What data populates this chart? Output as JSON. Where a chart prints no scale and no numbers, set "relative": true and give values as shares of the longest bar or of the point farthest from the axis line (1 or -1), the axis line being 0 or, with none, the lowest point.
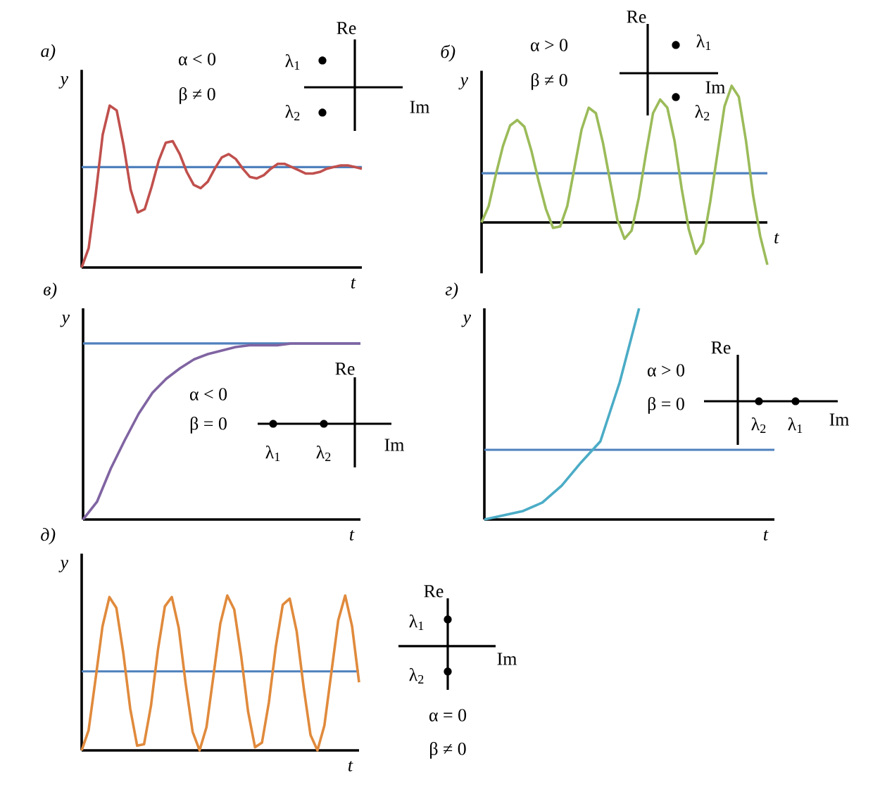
{
  "chart_data": [
    {
      "type": "line",
      "title": "а)",
      "xlabel": "t",
      "ylabel": "y",
      "relative": true,
      "categories": [
        null,
        null,
        null,
        null,
        null,
        null,
        null,
        null,
        null,
        null,
        null,
        null,
        null,
        null,
        null,
        null,
        null,
        null,
        null,
        null,
        null,
        null,
        null,
        null,
        null,
        null,
        null,
        null,
        null,
        null,
        null,
        null,
        null,
        null,
        null,
        null,
        null,
        null,
        null,
        null,
        null
      ],
      "series": [
        {
          "color": "#c0504d",
          "values": [
            0,
            0.12,
            0.45,
            0.82,
            1.0,
            0.97,
            0.75,
            0.48,
            0.34,
            0.36,
            0.5,
            0.66,
            0.77,
            0.78,
            0.7,
            0.59,
            0.51,
            0.49,
            0.53,
            0.61,
            0.68,
            0.7,
            0.67,
            0.61,
            0.56,
            0.55,
            0.57,
            0.61,
            0.64,
            0.64,
            0.62,
            0.6,
            0.58,
            0.58,
            0.59,
            0.61,
            0.62,
            0.63,
            0.63,
            0.62,
            0.61
          ]
        }
      ],
      "ref_lines": [
        {
          "axis": "y",
          "value": 0.62,
          "color": "#4f81bd"
        }
      ],
      "annotations": [
        "α < 0",
        "β ≠ 0",
        "Re",
        "Im",
        "λ$_{1}$",
        "λ$_{2}$"
      ]
    },
    {
      "type": "line",
      "title": "б)",
      "xlabel": "t",
      "ylabel": "y",
      "relative": true,
      "categories": [
        null,
        null,
        null,
        null,
        null,
        null,
        null,
        null,
        null,
        null,
        null,
        null,
        null,
        null,
        null,
        null,
        null,
        null,
        null,
        null,
        null,
        null,
        null,
        null,
        null,
        null,
        null,
        null,
        null,
        null,
        null,
        null,
        null,
        null,
        null,
        null,
        null,
        null,
        null,
        null,
        null
      ],
      "series": [
        {
          "color": "#9bbb59",
          "values": [
            0,
            0.12,
            0.35,
            0.56,
            0.71,
            0.75,
            0.7,
            0.52,
            0.3,
            0.1,
            -0.04,
            -0.03,
            0.12,
            0.4,
            0.68,
            0.84,
            0.8,
            0.58,
            0.3,
            0.02,
            -0.12,
            -0.06,
            0.18,
            0.5,
            0.8,
            0.9,
            0.84,
            0.6,
            0.25,
            -0.05,
            -0.23,
            -0.15,
            0.15,
            0.5,
            0.85,
            1.0,
            0.92,
            0.6,
            0.2,
            -0.1,
            -0.31
          ]
        }
      ],
      "ref_lines": [
        {
          "axis": "y",
          "value": 0.36,
          "color": "#4f81bd"
        }
      ],
      "annotations": [
        "α > 0",
        "β ≠ 0",
        "Re",
        "Im",
        "λ$_{1}$",
        "λ$_{2}$"
      ]
    },
    {
      "type": "line",
      "title": "в)",
      "xlabel": "t",
      "ylabel": "y",
      "relative": true,
      "categories": [
        null,
        null,
        null,
        null,
        null,
        null,
        null,
        null,
        null,
        null,
        null,
        null,
        null,
        null,
        null,
        null,
        null,
        null,
        null,
        null,
        null
      ],
      "series": [
        {
          "color": "#8064a2",
          "values": [
            0,
            0.1,
            0.29,
            0.45,
            0.6,
            0.72,
            0.8,
            0.86,
            0.91,
            0.94,
            0.96,
            0.98,
            0.99,
            0.99,
            0.99,
            1.0,
            1.0,
            1.0,
            1.0,
            1.0,
            1.0
          ]
        }
      ],
      "ref_lines": [
        {
          "axis": "y",
          "value": 1.0,
          "color": "#4f81bd"
        }
      ],
      "annotations": [
        "α < 0",
        "β = 0",
        "Re",
        "Im",
        "λ$_{1}$",
        "λ$_{2}$"
      ]
    },
    {
      "type": "line",
      "title": "г)",
      "xlabel": "t",
      "ylabel": "y",
      "relative": true,
      "categories": [
        null,
        null,
        null,
        null,
        null,
        null,
        null,
        null,
        null,
        null,
        null,
        null,
        null,
        null,
        null,
        null
      ],
      "series": [
        {
          "color": "#4bacc6",
          "values": [
            0,
            0.02,
            0.04,
            0.08,
            0.16,
            0.27,
            0.37,
            0.65,
            1.0,
            null,
            null,
            null,
            null,
            null,
            null,
            null
          ]
        }
      ],
      "ref_lines": [
        {
          "axis": "y",
          "value": 0.33,
          "color": "#4f81bd"
        }
      ],
      "annotations": [
        "α > 0",
        "β = 0",
        "Re",
        "Im",
        "λ$_{1}$",
        "λ$_{2}$"
      ]
    },
    {
      "type": "line",
      "title": "д)",
      "xlabel": "t",
      "ylabel": "y",
      "relative": true,
      "categories": [
        null,
        null,
        null,
        null,
        null,
        null,
        null,
        null,
        null,
        null,
        null,
        null,
        null,
        null,
        null,
        null,
        null,
        null,
        null,
        null,
        null,
        null,
        null,
        null,
        null,
        null,
        null,
        null,
        null,
        null,
        null,
        null,
        null,
        null,
        null,
        null,
        null,
        null,
        null,
        null,
        null
      ],
      "series": [
        {
          "color": "#e08a3c",
          "values": [
            0,
            0.13,
            0.46,
            0.8,
            0.99,
            0.92,
            0.63,
            0.27,
            0.03,
            0.04,
            0.29,
            0.65,
            0.93,
            0.99,
            0.79,
            0.43,
            0.12,
            0.0,
            0.15,
            0.48,
            0.82,
            1.0,
            0.91,
            0.61,
            0.25,
            0.02,
            0.05,
            0.31,
            0.67,
            0.94,
            0.98,
            0.77,
            0.41,
            0.1,
            0.0,
            0.16,
            0.5,
            0.84,
            1.0,
            0.8,
            0.44
          ]
        }
      ],
      "ref_lines": [
        {
          "axis": "y",
          "value": 0.51,
          "color": "#4f81bd"
        }
      ],
      "annotations": [
        "α = 0",
        "β ≠ 0",
        "Re",
        "Im",
        "λ$_{1}$",
        "λ$_{2}$"
      ]
    }
  ]
}
